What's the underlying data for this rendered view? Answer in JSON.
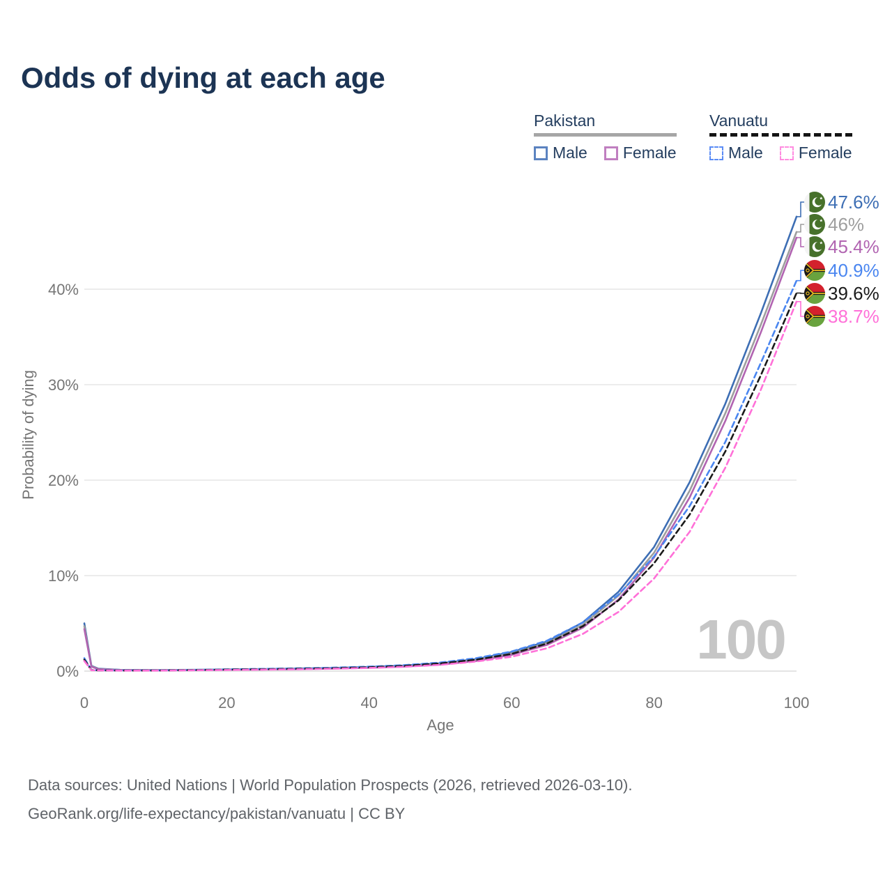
{
  "title": "Odds of dying at each age",
  "watermark": "100",
  "legend": {
    "groups": [
      {
        "country": "Pakistan",
        "line_style": "solid",
        "underline_color": "#a6a6a6",
        "items": [
          {
            "label": "Male",
            "color": "#5b83c0"
          },
          {
            "label": "Female",
            "color": "#c07fc0"
          }
        ]
      },
      {
        "country": "Vanuatu",
        "line_style": "dashed",
        "underline_color": "#141414",
        "items": [
          {
            "label": "Male",
            "color": "#5b8cf5"
          },
          {
            "label": "Female",
            "color": "#ff8ce0"
          }
        ]
      }
    ]
  },
  "axes": {
    "x_label": "Age",
    "y_label": "Probability of dying",
    "x_ticks": [
      "0",
      "20",
      "40",
      "60",
      "80",
      "100"
    ],
    "y_ticks": [
      "0%",
      "10%",
      "20%",
      "30%",
      "40%"
    ]
  },
  "footer": {
    "line1": "Data sources: United Nations | World Population Prospects (2026, retrieved 2026-03-10).",
    "line2": "GeoRank.org/life-expectancy/pakistan/vanuatu | CC BY"
  },
  "chart_data": {
    "type": "line",
    "title": "Odds of dying at each age",
    "xlabel": "Age",
    "ylabel": "Probability of dying",
    "xlim": [
      0,
      100
    ],
    "ylim": [
      0,
      48
    ],
    "x_ticks": [
      0,
      20,
      40,
      60,
      80,
      100
    ],
    "y_ticks_pct": [
      0,
      10,
      20,
      30,
      40
    ],
    "grid": "horizontal",
    "legend_position": "top-right",
    "x": [
      0,
      1,
      2,
      5,
      10,
      15,
      20,
      25,
      30,
      35,
      40,
      45,
      50,
      55,
      60,
      65,
      70,
      75,
      80,
      85,
      90,
      95,
      100
    ],
    "series": [
      {
        "name": "Pakistan Male",
        "country": "Pakistan",
        "sex": "male",
        "flag": "pk",
        "dash": false,
        "color": "#3d6eb4",
        "end_label": "47.6%",
        "end_value": 47.6,
        "values": [
          5.0,
          0.55,
          0.25,
          0.13,
          0.11,
          0.13,
          0.17,
          0.21,
          0.26,
          0.33,
          0.43,
          0.58,
          0.82,
          1.25,
          2.0,
          3.1,
          5.1,
          8.3,
          13.0,
          19.8,
          28.0,
          37.5,
          47.6
        ]
      },
      {
        "name": "Pakistan All",
        "country": "Pakistan",
        "sex": "all",
        "flag": "pk",
        "dash": false,
        "color": "#9e9e9e",
        "end_label": "46%",
        "end_value": 46.0,
        "values": [
          4.7,
          0.5,
          0.22,
          0.12,
          0.1,
          0.12,
          0.15,
          0.19,
          0.23,
          0.29,
          0.38,
          0.52,
          0.75,
          1.15,
          1.85,
          2.95,
          4.85,
          7.9,
          12.4,
          18.9,
          27.0,
          36.3,
          46.0
        ]
      },
      {
        "name": "Pakistan Female",
        "country": "Pakistan",
        "sex": "female",
        "flag": "pk",
        "dash": false,
        "color": "#b164b1",
        "end_label": "45.4%",
        "end_value": 45.4,
        "values": [
          4.4,
          0.46,
          0.2,
          0.11,
          0.09,
          0.1,
          0.13,
          0.16,
          0.2,
          0.26,
          0.34,
          0.47,
          0.68,
          1.05,
          1.7,
          2.75,
          4.55,
          7.5,
          11.9,
          18.2,
          26.2,
          35.5,
          45.4
        ]
      },
      {
        "name": "Vanuatu Male",
        "country": "Vanuatu",
        "sex": "male",
        "flag": "vu",
        "dash": true,
        "color": "#4a86f0",
        "end_label": "40.9%",
        "end_value": 40.9,
        "values": [
          1.35,
          0.12,
          0.09,
          0.07,
          0.07,
          0.12,
          0.18,
          0.23,
          0.29,
          0.36,
          0.47,
          0.63,
          0.9,
          1.35,
          2.05,
          3.2,
          5.1,
          8.0,
          12.0,
          17.3,
          24.0,
          32.3,
          40.9
        ]
      },
      {
        "name": "Vanuatu All",
        "country": "Vanuatu",
        "sex": "all",
        "flag": "vu",
        "dash": true,
        "color": "#1a1a1a",
        "end_label": "39.6%",
        "end_value": 39.6,
        "values": [
          1.2,
          0.1,
          0.08,
          0.06,
          0.06,
          0.1,
          0.15,
          0.19,
          0.24,
          0.3,
          0.4,
          0.55,
          0.8,
          1.2,
          1.8,
          2.9,
          4.7,
          7.4,
          11.3,
          16.4,
          23.0,
          31.0,
          39.6
        ]
      },
      {
        "name": "Vanuatu Female",
        "country": "Vanuatu",
        "sex": "female",
        "flag": "vu",
        "dash": true,
        "color": "#ff70d8",
        "end_label": "38.7%",
        "end_value": 38.7,
        "values": [
          1.05,
          0.09,
          0.07,
          0.05,
          0.05,
          0.08,
          0.12,
          0.15,
          0.19,
          0.25,
          0.33,
          0.45,
          0.66,
          1.0,
          1.5,
          2.4,
          3.9,
          6.2,
          9.7,
          14.6,
          21.3,
          29.5,
          38.7
        ]
      }
    ]
  }
}
